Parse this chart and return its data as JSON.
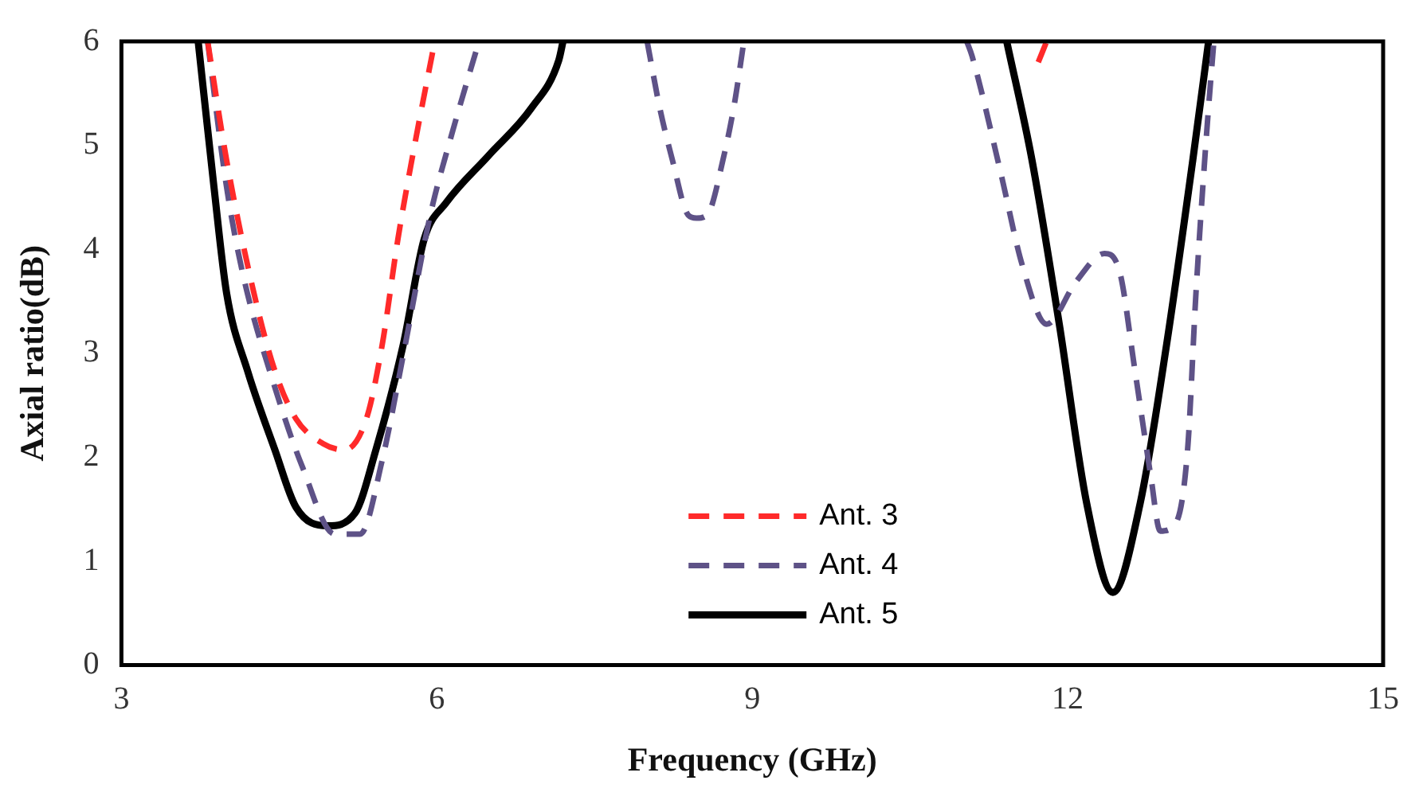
{
  "chart_data": {
    "type": "line",
    "xlabel": "Frequency (GHz)",
    "ylabel": "Axial ratio(dB)",
    "xlim": [
      3,
      15
    ],
    "xticks": [
      3,
      6,
      9,
      12,
      15
    ],
    "ylim": [
      0,
      6
    ],
    "yticks": [
      0,
      1,
      2,
      3,
      4,
      5,
      6
    ],
    "grid": false,
    "legend": "bottom",
    "marker": "none",
    "series": [
      {
        "name": "Ant. 3",
        "color": "#ff2a2a",
        "line_style": "dashed",
        "x": [
          3.82,
          4.0,
          4.26,
          4.46,
          4.66,
          4.92,
          5.12,
          5.33,
          5.48,
          5.63,
          5.79,
          5.98,
          null,
          11.72,
          11.8
        ],
        "values": [
          6,
          4.86,
          3.58,
          2.83,
          2.37,
          2.13,
          2.07,
          2.37,
          3.08,
          4.1,
          5.01,
          6,
          null,
          5.8,
          6
        ]
      },
      {
        "name": "Ant. 4",
        "color": "#5e5287",
        "line_style": "dashed",
        "x": [
          3.82,
          4.0,
          4.16,
          4.46,
          4.72,
          5.03,
          5.27,
          5.48,
          5.68,
          5.94,
          6.14,
          6.4,
          null,
          8.0,
          8.12,
          8.24,
          8.39,
          8.47,
          8.57,
          8.73,
          8.83,
          8.92,
          null,
          11.04,
          11.09,
          11.36,
          11.57,
          11.8,
          12.08,
          12.35,
          12.49,
          12.64,
          12.79,
          12.88,
          13.03,
          13.14,
          13.22,
          13.32,
          13.39
        ],
        "values": [
          6,
          4.6,
          3.74,
          2.67,
          1.91,
          1.26,
          1.26,
          1.97,
          2.98,
          4.34,
          5.1,
          6,
          null,
          6,
          5.36,
          4.86,
          4.33,
          4.3,
          4.33,
          4.9,
          5.4,
          6,
          null,
          6,
          5.86,
          4.75,
          3.84,
          3.28,
          3.69,
          3.96,
          3.8,
          2.83,
          1.82,
          1.29,
          1.37,
          2.07,
          3.58,
          5.1,
          6
        ]
      },
      {
        "name": "Ant. 5",
        "color": "#000000",
        "line_style": "solid",
        "x": [
          3.73,
          3.88,
          4.0,
          4.2,
          4.46,
          4.66,
          4.96,
          5.22,
          5.42,
          5.68,
          5.88,
          6.09,
          6.49,
          6.9,
          7.16,
          7.2,
          null,
          11.42,
          11.66,
          11.92,
          12.18,
          12.43,
          12.69,
          12.94,
          13.19,
          13.34
        ],
        "values": [
          6,
          4.6,
          3.58,
          2.83,
          2.07,
          1.52,
          1.34,
          1.46,
          2.07,
          3.08,
          4.1,
          4.45,
          4.9,
          5.36,
          5.82,
          6,
          null,
          6,
          4.86,
          3.28,
          1.56,
          0.7,
          1.56,
          3.08,
          4.86,
          6
        ]
      }
    ]
  }
}
